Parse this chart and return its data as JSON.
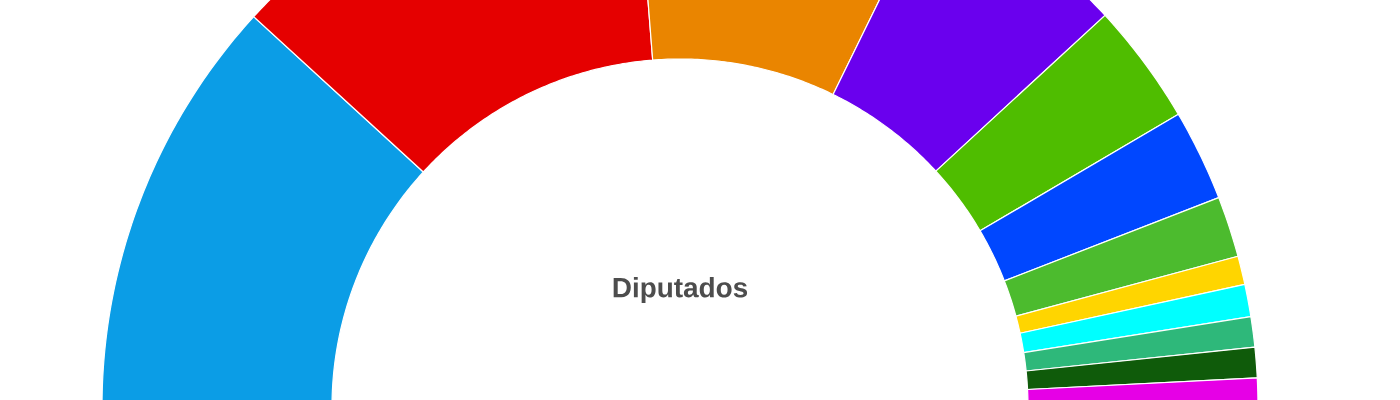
{
  "chart_data": {
    "type": "donut",
    "title": "Diputados",
    "categories": [
      null,
      null,
      null,
      null,
      null,
      null,
      null,
      null,
      null,
      null,
      null,
      null
    ],
    "values": [
      23.6,
      23.9,
      17.0,
      11.8,
      6.8,
      5.1,
      3.4,
      1.6,
      1.8,
      1.7,
      1.7,
      1.6
    ],
    "colors": [
      "#0b9de6",
      "#e50000",
      "#ea8500",
      "#6a00ee",
      "#4fbd00",
      "#0047ff",
      "#4cbb2e",
      "#ffd500",
      "#00ffff",
      "#2eb87a",
      "#0f5b0a",
      "#e600e6"
    ]
  }
}
